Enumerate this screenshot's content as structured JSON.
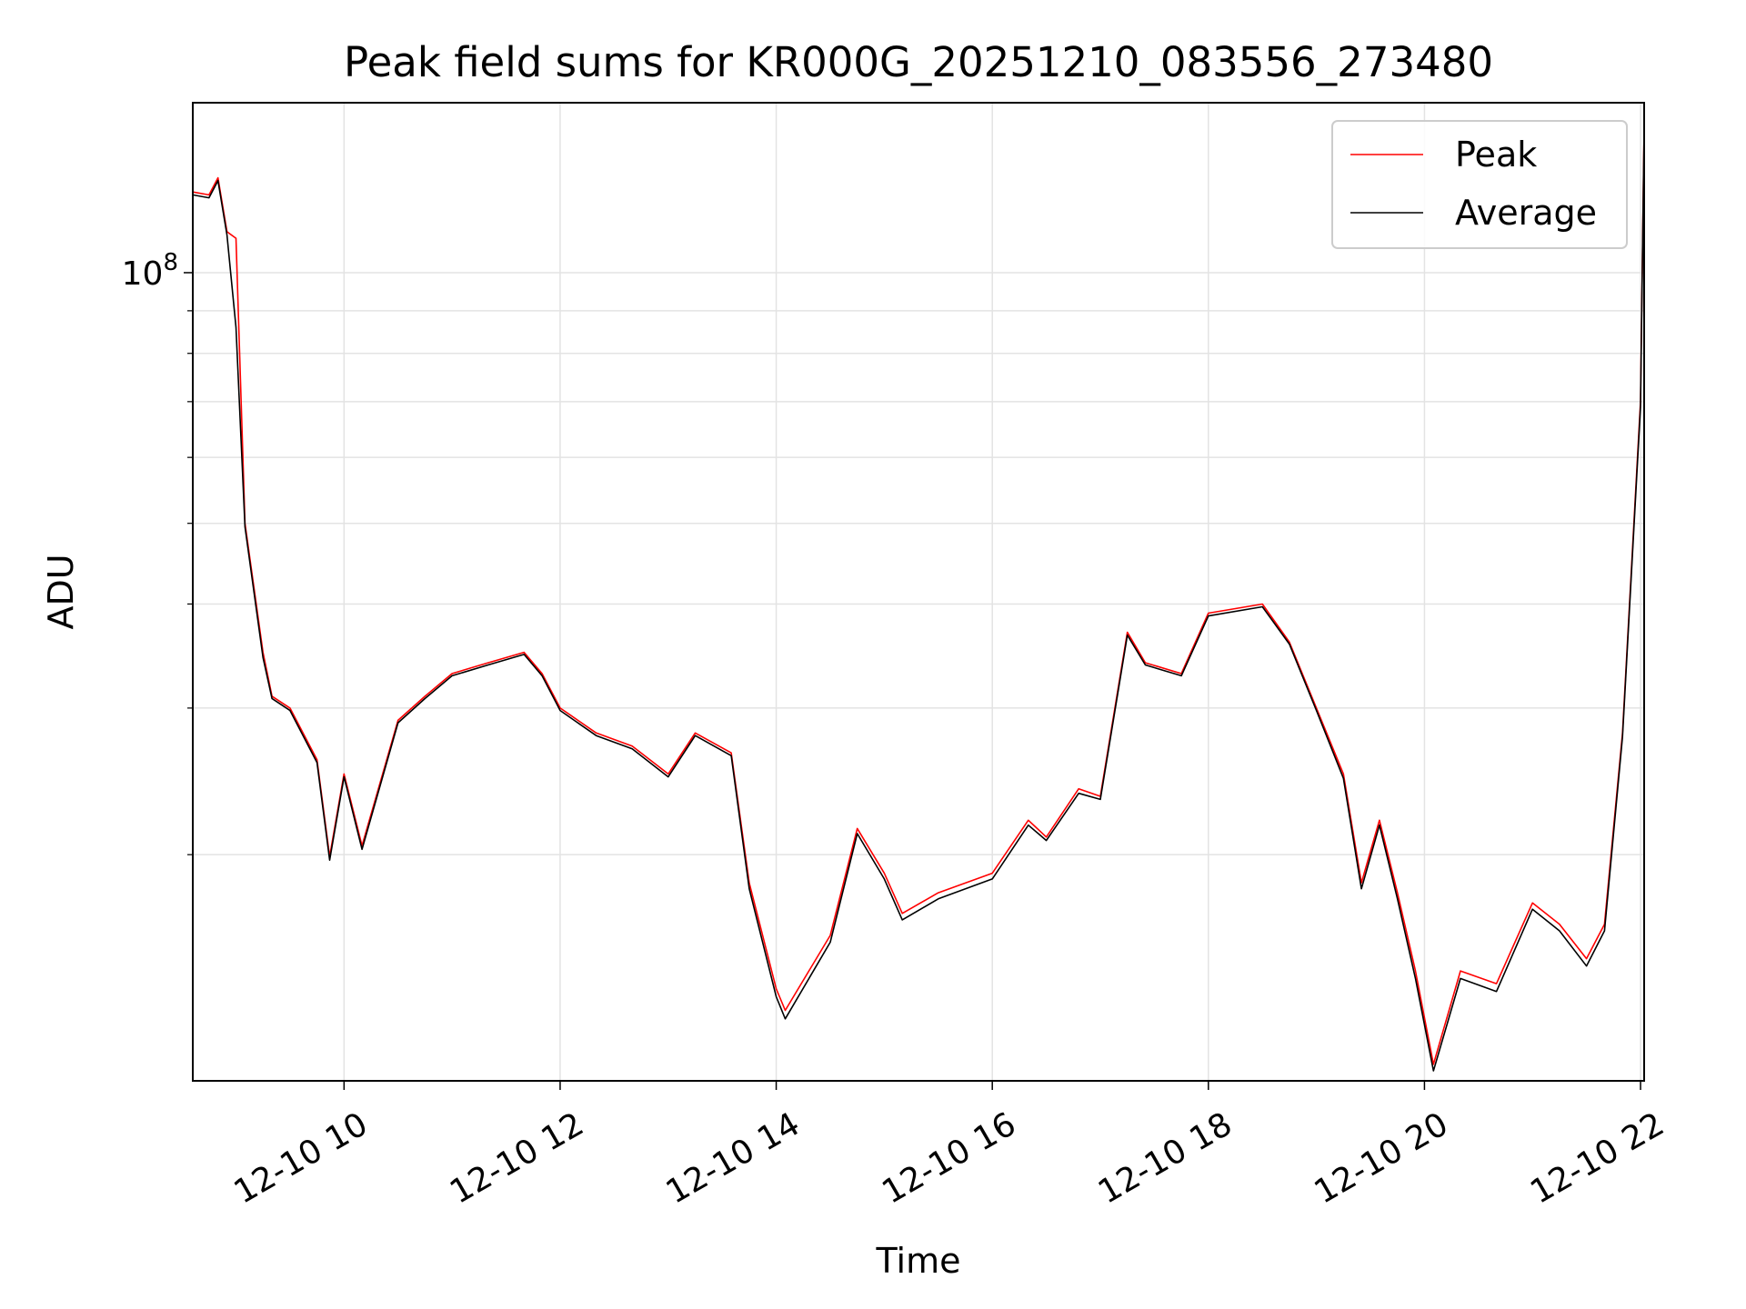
{
  "chart_data": {
    "type": "line",
    "title": "Peak field sums for KR000G_20251210_083556_273480",
    "xlabel": "Time",
    "ylabel": "ADU",
    "xlim": [
      "2025-12-10 08:36",
      "2025-12-10 22:02"
    ],
    "ylim": [
      10700000.0,
      160000000.0
    ],
    "yscale": "log",
    "grid": true,
    "legend_position": "upper right",
    "xticks": [
      {
        "at": "2025-12-10 10:00",
        "label": "12-10 10"
      },
      {
        "at": "2025-12-10 12:00",
        "label": "12-10 12"
      },
      {
        "at": "2025-12-10 14:00",
        "label": "12-10 14"
      },
      {
        "at": "2025-12-10 16:00",
        "label": "12-10 16"
      },
      {
        "at": "2025-12-10 18:00",
        "label": "12-10 18"
      },
      {
        "at": "2025-12-10 20:00",
        "label": "12-10 20"
      },
      {
        "at": "2025-12-10 22:00",
        "label": "12-10 22"
      }
    ],
    "yticks_major": [
      {
        "value": 100000000,
        "base": "10",
        "exp": "8"
      }
    ],
    "yticks_minor": [
      20000000,
      30000000,
      40000000,
      50000000,
      60000000,
      70000000,
      80000000,
      90000000
    ],
    "x": [
      "2025-12-10 08:36",
      "2025-12-10 08:45",
      "2025-12-10 08:50",
      "2025-12-10 08:55",
      "2025-12-10 09:00",
      "2025-12-10 09:05",
      "2025-12-10 09:15",
      "2025-12-10 09:20",
      "2025-12-10 09:30",
      "2025-12-10 09:45",
      "2025-12-10 09:52",
      "2025-12-10 10:00",
      "2025-12-10 10:10",
      "2025-12-10 10:30",
      "2025-12-10 10:45",
      "2025-12-10 11:00",
      "2025-12-10 11:20",
      "2025-12-10 11:40",
      "2025-12-10 11:50",
      "2025-12-10 12:00",
      "2025-12-10 12:20",
      "2025-12-10 12:40",
      "2025-12-10 13:00",
      "2025-12-10 13:15",
      "2025-12-10 13:35",
      "2025-12-10 13:45",
      "2025-12-10 14:00",
      "2025-12-10 14:05",
      "2025-12-10 14:30",
      "2025-12-10 14:45",
      "2025-12-10 15:00",
      "2025-12-10 15:10",
      "2025-12-10 15:30",
      "2025-12-10 16:00",
      "2025-12-10 16:20",
      "2025-12-10 16:30",
      "2025-12-10 16:48",
      "2025-12-10 17:00",
      "2025-12-10 17:15",
      "2025-12-10 17:25",
      "2025-12-10 17:45",
      "2025-12-10 18:00",
      "2025-12-10 18:30",
      "2025-12-10 18:45",
      "2025-12-10 19:00",
      "2025-12-10 19:15",
      "2025-12-10 19:25",
      "2025-12-10 19:35",
      "2025-12-10 19:45",
      "2025-12-10 19:55",
      "2025-12-10 20:05",
      "2025-12-10 20:20",
      "2025-12-10 20:40",
      "2025-12-10 21:00",
      "2025-12-10 21:15",
      "2025-12-10 21:30",
      "2025-12-10 21:40",
      "2025-12-10 21:50",
      "2025-12-10 22:00",
      "2025-12-10 22:02"
    ],
    "series": [
      {
        "name": "Peak",
        "color": "#ff0000",
        "values": [
          125000000,
          124000000,
          130000000,
          112000000,
          110000000,
          50000000,
          35000000,
          31000000,
          30000000,
          26000000,
          19900000,
          25000000,
          20500000,
          29000000,
          31000000,
          33000000,
          34000000,
          35000000,
          33000000,
          30000000,
          28000000,
          27000000,
          25000000,
          28000000,
          26500000,
          18500000,
          13800000,
          13000000,
          16000000,
          21500000,
          19000000,
          17000000,
          18000000,
          19000000,
          22000000,
          21000000,
          24000000,
          23500000,
          37000000,
          34000000,
          33000000,
          39000000,
          40000000,
          36000000,
          30000000,
          25000000,
          18500000,
          22000000,
          18000000,
          14500000,
          11200000,
          14500000,
          14000000,
          17500000,
          16500000,
          15000000,
          16500000,
          28000000,
          70000000,
          150000000
        ]
      },
      {
        "name": "Average",
        "color": "#000000",
        "values": [
          124000000,
          123000000,
          129000000,
          111000000,
          86000000,
          49500000,
          34500000,
          30800000,
          29800000,
          25800000,
          19700000,
          24800000,
          20300000,
          28800000,
          30800000,
          32800000,
          33800000,
          34800000,
          32800000,
          29800000,
          27800000,
          26800000,
          24800000,
          27800000,
          26300000,
          18200000,
          13500000,
          12700000,
          15700000,
          21200000,
          18700000,
          16700000,
          17700000,
          18700000,
          21700000,
          20800000,
          23700000,
          23300000,
          36700000,
          33800000,
          32800000,
          38700000,
          39700000,
          35800000,
          29800000,
          24700000,
          18200000,
          21700000,
          17700000,
          14200000,
          11000000,
          14200000,
          13700000,
          17200000,
          16200000,
          14700000,
          16200000,
          27700000,
          69000000,
          149000000
        ]
      }
    ]
  }
}
